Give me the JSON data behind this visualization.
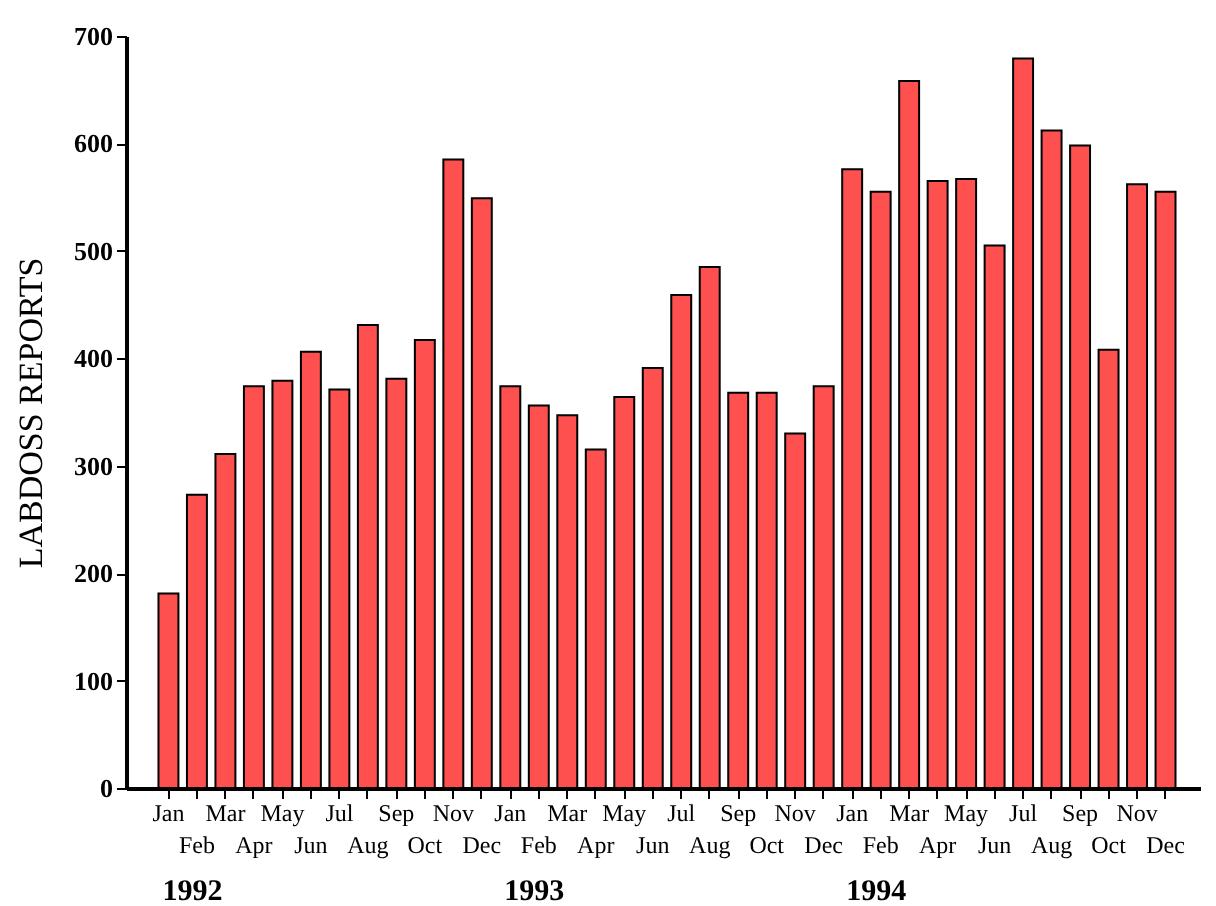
{
  "chart_data": {
    "type": "bar",
    "ylabel": "LABDOSS REPORTS",
    "categories": [
      "Jan",
      "Feb",
      "Mar",
      "Apr",
      "May",
      "Jun",
      "Jul",
      "Aug",
      "Sep",
      "Oct",
      "Nov",
      "Dec",
      "Jan",
      "Feb",
      "Mar",
      "Apr",
      "May",
      "Jun",
      "Jul",
      "Aug",
      "Sep",
      "Oct",
      "Nov",
      "Dec",
      "Jan",
      "Feb",
      "Mar",
      "Apr",
      "May",
      "Jun",
      "Jul",
      "Aug",
      "Sep",
      "Oct",
      "Nov",
      "Dec"
    ],
    "values": [
      181,
      273,
      311,
      374,
      379,
      406,
      371,
      431,
      381,
      417,
      585,
      549,
      374,
      356,
      347,
      315,
      364,
      391,
      459,
      485,
      368,
      368,
      330,
      374,
      576,
      555,
      658,
      565,
      567,
      505,
      679,
      612,
      598,
      408,
      562,
      555
    ],
    "color": "#ff5050",
    "ylim": [
      0,
      700
    ],
    "yticks": [
      0,
      100,
      200,
      300,
      400,
      500,
      600,
      700
    ],
    "annotations": [
      "1992",
      "1993",
      "1994"
    ]
  }
}
